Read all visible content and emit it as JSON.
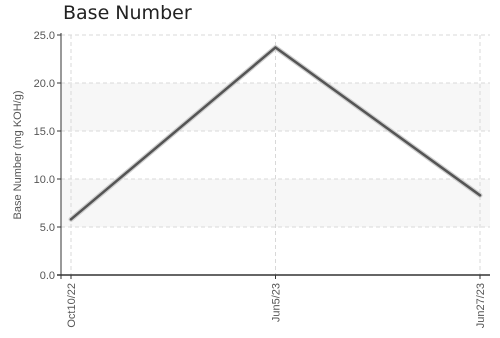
{
  "chart_data": {
    "type": "line",
    "title": "Base Number",
    "xlabel": "",
    "ylabel": "Base Number (mg KOH/g)",
    "categories": [
      "Oct10/22",
      "Jun5/23",
      "Jun27/23"
    ],
    "series": [
      {
        "values": [
          5.8,
          23.7,
          8.3
        ]
      }
    ],
    "ylim": [
      0,
      25
    ],
    "yticks": [
      "0.0",
      "5.0",
      "10.0",
      "15.0",
      "20.0",
      "25.0"
    ],
    "grid": true,
    "legend": "none",
    "line_color": "#555555",
    "band_color": "#f7f7f7"
  }
}
